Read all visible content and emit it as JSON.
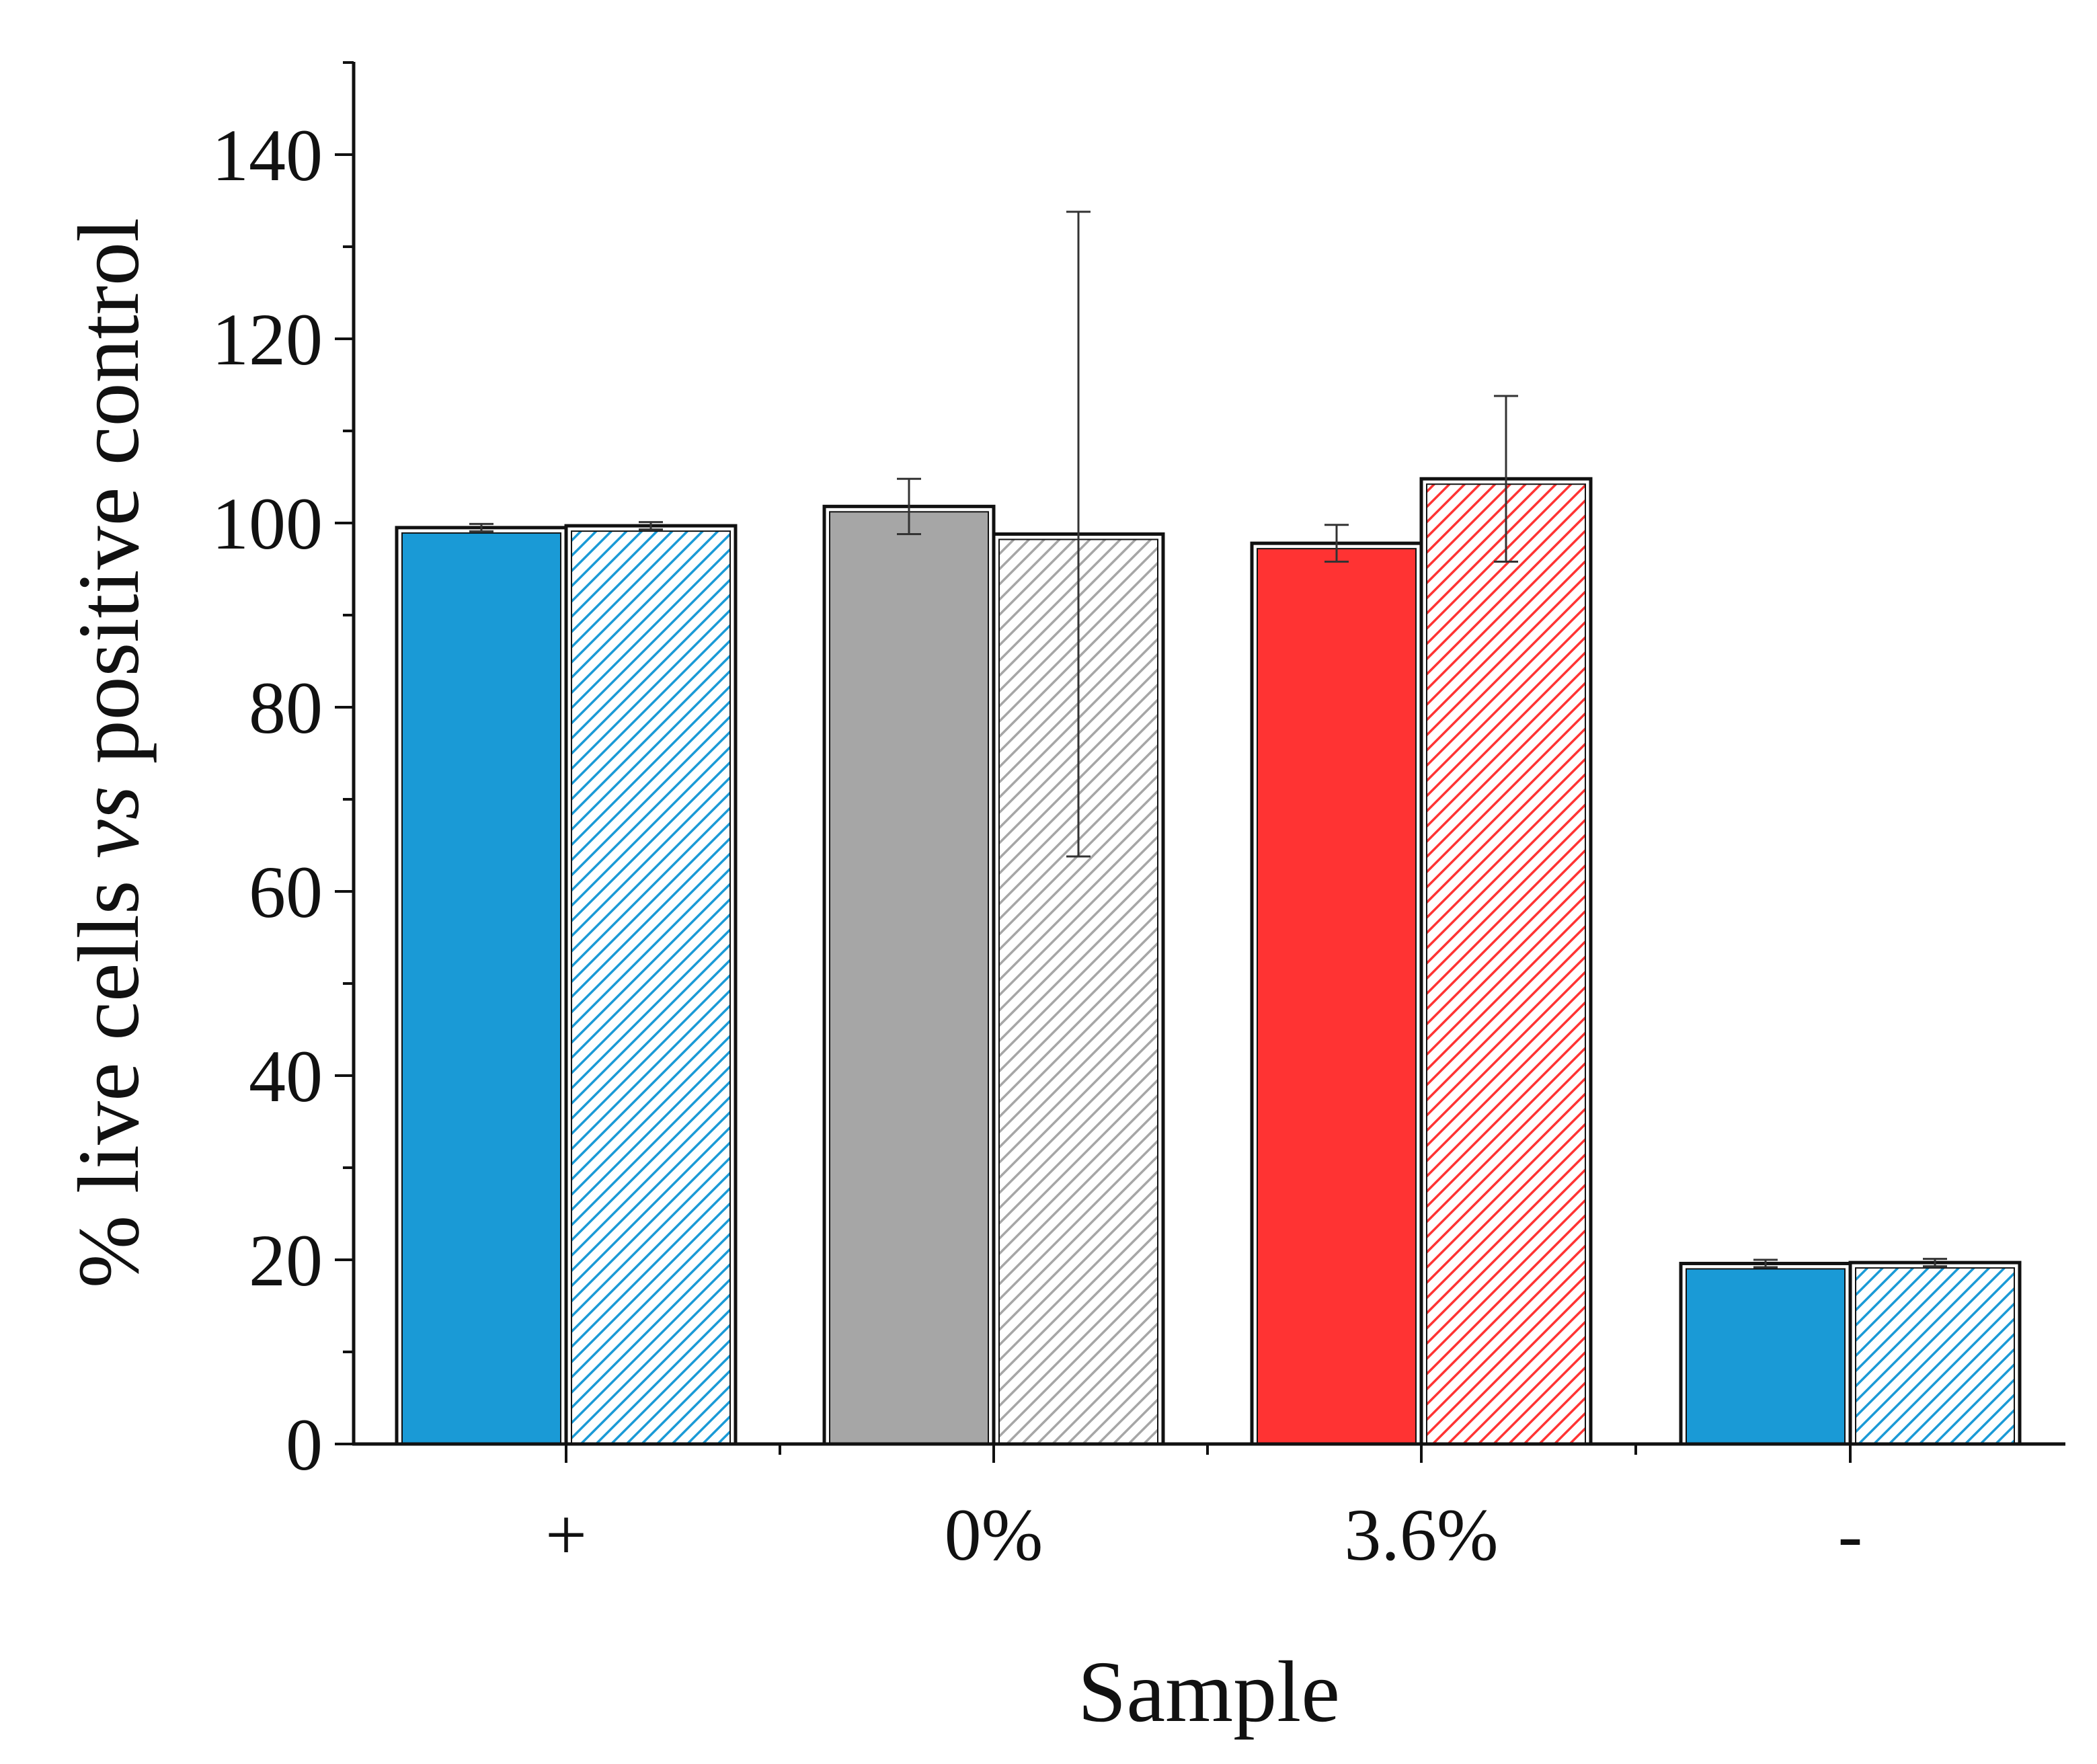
{
  "chart_data": {
    "type": "bar",
    "title": "",
    "xlabel": "Sample",
    "ylabel": {
      "prefix": "% live cells ",
      "italic": "vs",
      "suffix": " positive control"
    },
    "ylim": [
      0,
      150
    ],
    "yticks": [
      "0",
      "20",
      "40",
      "60",
      "80",
      "100",
      "120",
      "140"
    ],
    "grid": false,
    "legend": "none",
    "categories": [
      "+",
      "0%",
      "3.6%",
      "-"
    ],
    "series": [
      {
        "name": "solid",
        "pattern": "solid",
        "values": [
          99.5,
          101.8,
          97.8,
          19.6
        ],
        "errors": [
          0.4,
          3.0,
          2.0,
          0.4
        ]
      },
      {
        "name": "hatched",
        "pattern": "hatched",
        "values": [
          99.7,
          98.8,
          104.8,
          19.7
        ],
        "errors": [
          0.4,
          35.0,
          9.0,
          0.4
        ]
      }
    ],
    "colors": [
      "#1a9ad6",
      "#a6a6a6",
      "#ff3333",
      "#1a9ad6"
    ]
  }
}
